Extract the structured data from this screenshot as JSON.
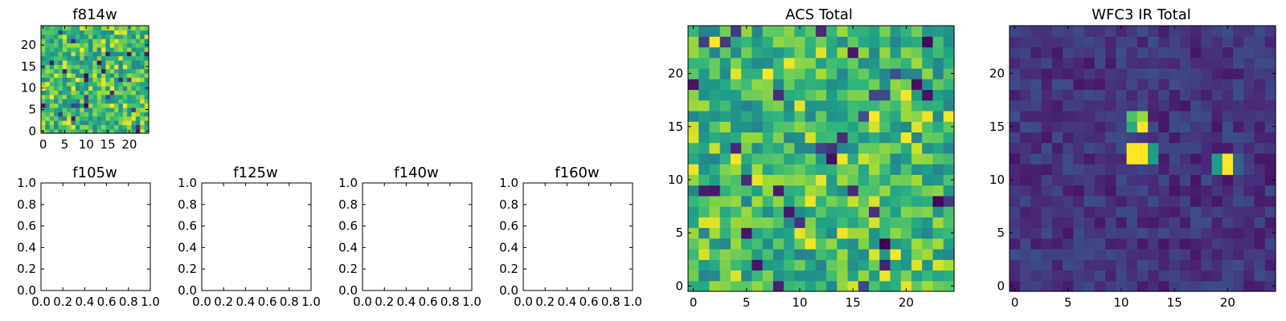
{
  "chart_data": [
    {
      "id": "f814w",
      "type": "heatmap",
      "title": "f814w",
      "colormap": "viridis",
      "grid_size": 25,
      "field": "noise",
      "xticks": [
        "0",
        "5",
        "10",
        "15",
        "20"
      ],
      "yticks": [
        "0",
        "5",
        "10",
        "15",
        "20"
      ],
      "xlim": [
        -0.5,
        24.5
      ],
      "ylim": [
        -0.5,
        24.5
      ]
    },
    {
      "id": "f105w",
      "type": "empty",
      "title": "f105w",
      "xticks": [
        "0.0",
        "0.2",
        "0.4",
        "0.6",
        "0.8",
        "1.0"
      ],
      "yticks": [
        "0.0",
        "0.2",
        "0.4",
        "0.6",
        "0.8",
        "1.0"
      ],
      "xlim": [
        0,
        1
      ],
      "ylim": [
        0,
        1
      ]
    },
    {
      "id": "f125w",
      "type": "empty",
      "title": "f125w",
      "xticks": [
        "0.0",
        "0.2",
        "0.4",
        "0.6",
        "0.8",
        "1.0"
      ],
      "yticks": [
        "0.0",
        "0.2",
        "0.4",
        "0.6",
        "0.8",
        "1.0"
      ],
      "xlim": [
        0,
        1
      ],
      "ylim": [
        0,
        1
      ]
    },
    {
      "id": "f140w",
      "type": "empty",
      "title": "f140w",
      "xticks": [
        "0.0",
        "0.2",
        "0.4",
        "0.6",
        "0.8",
        "1.0"
      ],
      "yticks": [
        "0.0",
        "0.2",
        "0.4",
        "0.6",
        "0.8",
        "1.0"
      ],
      "xlim": [
        0,
        1
      ],
      "ylim": [
        0,
        1
      ]
    },
    {
      "id": "f160w",
      "type": "empty",
      "title": "f160w",
      "xticks": [
        "0.0",
        "0.2",
        "0.4",
        "0.6",
        "0.8",
        "1.0"
      ],
      "yticks": [
        "0.0",
        "0.2",
        "0.4",
        "0.6",
        "0.8",
        "1.0"
      ],
      "xlim": [
        0,
        1
      ],
      "ylim": [
        0,
        1
      ]
    },
    {
      "id": "acs_total",
      "type": "heatmap",
      "title": "ACS Total",
      "colormap": "viridis",
      "grid_size": 25,
      "field": "noise",
      "xticks": [
        "0",
        "5",
        "10",
        "15",
        "20"
      ],
      "yticks": [
        "0",
        "5",
        "10",
        "15",
        "20"
      ],
      "xlim": [
        -0.5,
        24.5
      ],
      "ylim": [
        -0.5,
        24.5
      ]
    },
    {
      "id": "wfc3_ir_total",
      "type": "heatmap",
      "title": "WFC3 IR Total",
      "colormap": "viridis",
      "grid_size": 25,
      "field": "background_with_sources",
      "background_level": [
        0.06,
        0.24
      ],
      "sources": [
        {
          "x": 11,
          "y": 12,
          "value": 1.0
        },
        {
          "x": 12,
          "y": 12,
          "value": 1.0
        },
        {
          "x": 11,
          "y": 13,
          "value": 1.0
        },
        {
          "x": 12,
          "y": 13,
          "value": 1.0
        },
        {
          "x": 13,
          "y": 12,
          "value": 0.55
        },
        {
          "x": 13,
          "y": 13,
          "value": 0.55
        },
        {
          "x": 11,
          "y": 16,
          "value": 0.72
        },
        {
          "x": 12,
          "y": 16,
          "value": 0.85
        },
        {
          "x": 11,
          "y": 15,
          "value": 0.6
        },
        {
          "x": 12,
          "y": 15,
          "value": 1.0
        },
        {
          "x": 19,
          "y": 11,
          "value": 0.55
        },
        {
          "x": 19,
          "y": 12,
          "value": 0.55
        },
        {
          "x": 20,
          "y": 11,
          "value": 1.0
        },
        {
          "x": 20,
          "y": 12,
          "value": 1.0
        },
        {
          "x": 21,
          "y": 11,
          "value": 0.3
        },
        {
          "x": 21,
          "y": 12,
          "value": 0.3
        }
      ],
      "xticks": [
        "0",
        "5",
        "10",
        "15",
        "20"
      ],
      "yticks": [
        "0",
        "5",
        "10",
        "15",
        "20"
      ],
      "xlim": [
        -0.5,
        24.5
      ],
      "ylim": [
        -0.5,
        24.5
      ]
    }
  ]
}
